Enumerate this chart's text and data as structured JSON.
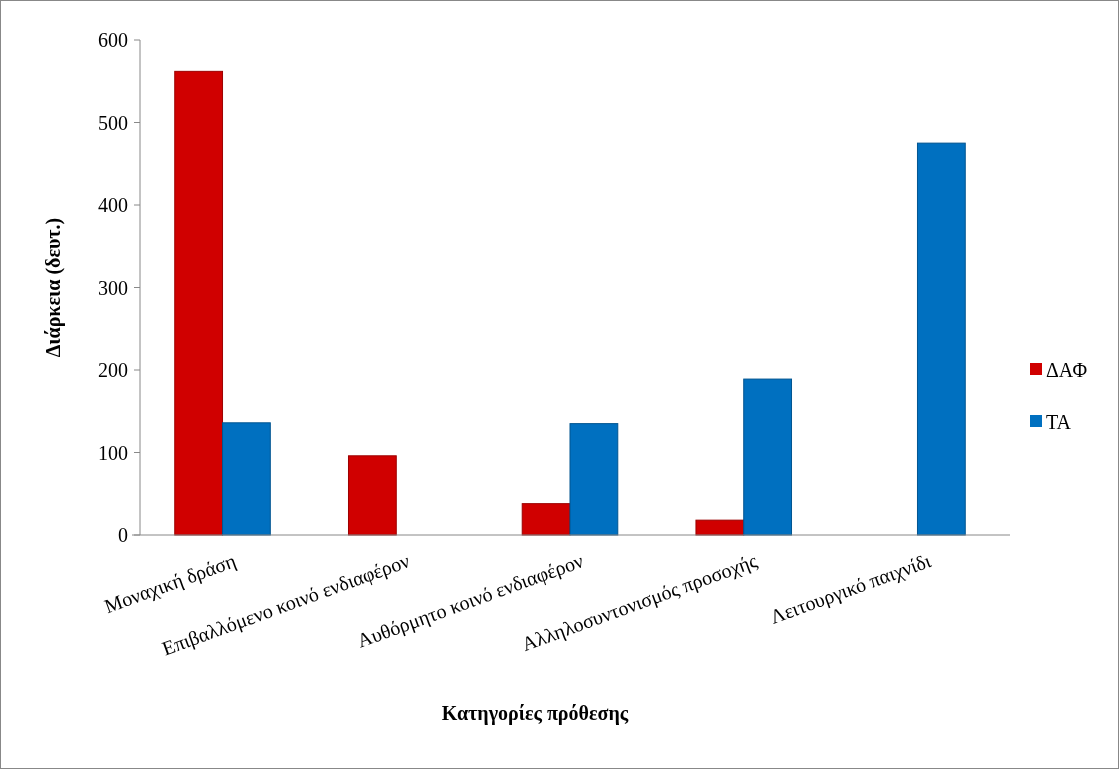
{
  "chart_data": {
    "type": "bar",
    "xlabel": "Κατηγορίες πρόθεσης",
    "ylabel": "Διάρκεια (δευτ.)",
    "categories": [
      "Μοναχική δράση",
      "Επιβαλλόμενο κοινό ενδιαφέρον",
      "Αυθόρμητο κοινό ενδιαφέρον",
      "Αλληλοσυντονισμός προσοχής",
      "Λειτουργικό παιχνίδι"
    ],
    "series": [
      {
        "name": "ΔΑΦ",
        "color": "#d00000",
        "values": [
          562,
          96,
          38,
          18,
          null
        ]
      },
      {
        "name": "ΤΑ",
        "color": "#0070c0",
        "values": [
          136,
          null,
          135,
          189,
          475
        ]
      }
    ],
    "ylim": [
      0,
      600
    ],
    "yticks": [
      0,
      100,
      200,
      300,
      400,
      500,
      600
    ],
    "grid": false,
    "legend": "right"
  }
}
